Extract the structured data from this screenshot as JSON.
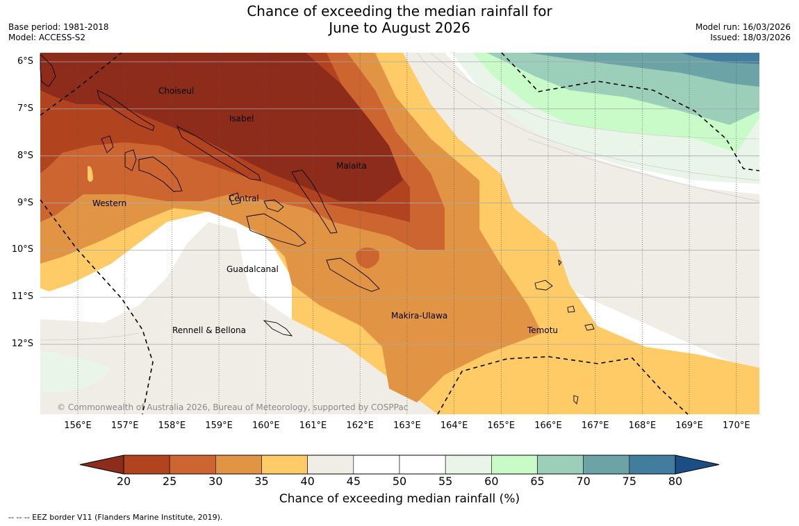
{
  "title": {
    "line1": "Chance of exceeding the median rainfall for",
    "line2": "June to August 2026"
  },
  "meta": {
    "base_period": "Base period: 1981-2018",
    "model": "Model: ACCESS-S2",
    "model_run": "Model run: 16/03/2026",
    "issued": "Issued: 18/03/2026"
  },
  "latitudes": [
    "6°S",
    "7°S",
    "8°S",
    "9°S",
    "10°S",
    "11°S",
    "12°S"
  ],
  "longitudes": [
    "156°E",
    "157°E",
    "158°E",
    "159°E",
    "160°E",
    "161°E",
    "162°E",
    "163°E",
    "164°E",
    "165°E",
    "166°E",
    "167°E",
    "168°E",
    "169°E",
    "170°E"
  ],
  "regions": {
    "choiseul": "Choiseul",
    "isabel": "Isabel",
    "malaita": "Malaita",
    "western": "Western",
    "central": "Central",
    "guadalcanal": "Guadalcanal",
    "makira": "Makira-Ulawa",
    "rennell": "Rennell & Bellona",
    "temotu": "Temotu"
  },
  "copyright": "© Commonwealth of Australia 2026, Bureau of Meteorology, supported by COSPPac",
  "colorbar": {
    "ticks": [
      "20",
      "25",
      "30",
      "35",
      "40",
      "45",
      "50",
      "55",
      "60",
      "65",
      "70",
      "75",
      "80"
    ],
    "colors": {
      "lt20": "#8e2c1b",
      "c20_25": "#b1431f",
      "c25_30": "#cc6530",
      "c30_35": "#e29445",
      "c35_40": "#fecb66",
      "c40_45": "#f0ece6",
      "c45_55": "#ffffff",
      "c55_60": "#eaf5ea",
      "c60_65": "#c8fbc7",
      "c65_70": "#9ccfba",
      "c70_75": "#6ba3a7",
      "c75_80": "#437d9d",
      "gt80": "#1a4e84"
    },
    "label": "Chance of exceeding median rainfall (%)"
  },
  "legend": "-- -- -- EEZ border V11 (Flanders Marine Institute, 2019)."
}
